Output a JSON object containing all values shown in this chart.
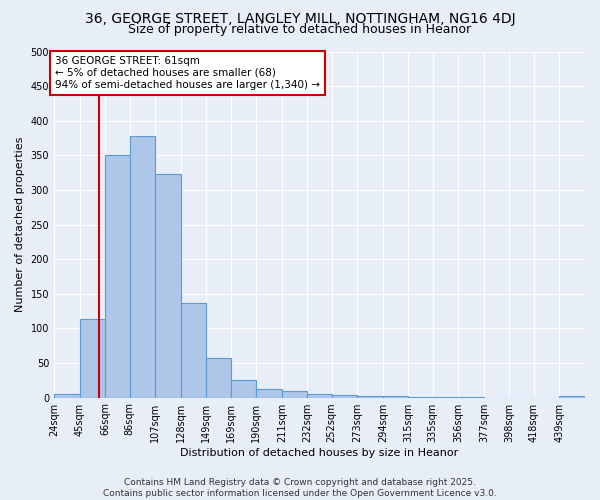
{
  "title_line1": "36, GEORGE STREET, LANGLEY MILL, NOTTINGHAM, NG16 4DJ",
  "title_line2": "Size of property relative to detached houses in Heanor",
  "xlabel": "Distribution of detached houses by size in Heanor",
  "ylabel": "Number of detached properties",
  "bin_labels": [
    "24sqm",
    "45sqm",
    "66sqm",
    "86sqm",
    "107sqm",
    "128sqm",
    "149sqm",
    "169sqm",
    "190sqm",
    "211sqm",
    "232sqm",
    "252sqm",
    "273sqm",
    "294sqm",
    "315sqm",
    "335sqm",
    "356sqm",
    "377sqm",
    "398sqm",
    "418sqm",
    "439sqm"
  ],
  "bar_values": [
    5,
    113,
    350,
    378,
    323,
    137,
    57,
    25,
    13,
    9,
    5,
    4,
    2,
    3,
    1,
    1,
    1,
    0,
    0,
    0,
    3
  ],
  "bar_color": "#aec6e8",
  "bar_edge_color": "#5b9bd5",
  "red_line_x": 61,
  "ylim": [
    0,
    500
  ],
  "yticks": [
    0,
    50,
    100,
    150,
    200,
    250,
    300,
    350,
    400,
    450,
    500
  ],
  "annotation_text": "36 GEORGE STREET: 61sqm\n← 5% of detached houses are smaller (68)\n94% of semi-detached houses are larger (1,340) →",
  "annotation_box_color": "#ffffff",
  "annotation_box_edge": "#cc0000",
  "footer_line1": "Contains HM Land Registry data © Crown copyright and database right 2025.",
  "footer_line2": "Contains public sector information licensed under the Open Government Licence v3.0.",
  "background_color": "#e8eef8",
  "grid_color": "#ffffff",
  "title_fontsize": 10,
  "subtitle_fontsize": 9,
  "axis_label_fontsize": 8,
  "tick_fontsize": 7,
  "annotation_fontsize": 7.5,
  "footer_fontsize": 6.5
}
